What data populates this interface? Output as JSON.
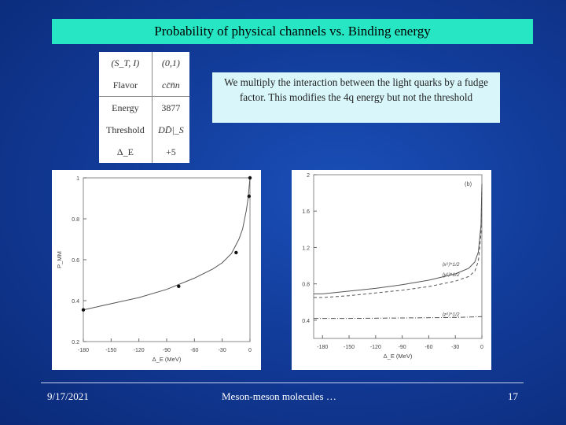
{
  "slide": {
    "title": "Probability of physical channels vs. Binding energy",
    "note": "We multiply the interaction between the light quarks by a fudge factor. This modifies the 4q energy but not the threshold",
    "table": {
      "rows": [
        {
          "label": "(S_T, I)",
          "value": "(0,1)"
        },
        {
          "label": "Flavor",
          "value": "cc̄n̄n"
        },
        {
          "label": "Energy",
          "value": "3877"
        },
        {
          "label": "Threshold",
          "value": "DD̄|_S"
        },
        {
          "label": "Δ_E",
          "value": "+5"
        }
      ]
    },
    "footer": {
      "date": "9/17/2021",
      "center": "Meson-meson molecules …",
      "page": "17"
    }
  },
  "chart_data": [
    {
      "type": "line",
      "ylabel": "P_MM",
      "xlabel": "Δ_E (MeV)",
      "xlim": [
        -180,
        0
      ],
      "ylim": [
        0.2,
        1.0
      ],
      "x_ticks": [
        "-180",
        "-150",
        "-120",
        "-90",
        "-60",
        "-30",
        "0"
      ],
      "y_ticks": [
        "0.2",
        "0.4",
        "0.6",
        "0.8",
        "1"
      ],
      "series": [
        {
          "x": [
            -180,
            -150,
            -120,
            -90,
            -60,
            -40,
            -30,
            -20,
            -12,
            -8,
            -4,
            -2,
            0
          ],
          "y": [
            0.355,
            0.385,
            0.415,
            0.455,
            0.51,
            0.555,
            0.585,
            0.63,
            0.7,
            0.75,
            0.84,
            0.9,
            1.0
          ]
        }
      ],
      "points": {
        "x": [
          -180,
          -77,
          -15,
          -1,
          0
        ],
        "y": [
          0.355,
          0.47,
          0.635,
          0.91,
          1.0
        ]
      }
    },
    {
      "type": "line",
      "panel_label": "(b)",
      "xlabel": "Δ_E (MeV)",
      "xlim": [
        -190,
        0
      ],
      "ylim": [
        0.2,
        2.0
      ],
      "x_ticks": [
        "-180",
        "-150",
        "-120",
        "-90",
        "-60",
        "-30",
        "0"
      ],
      "y_ticks": [
        "0.4",
        "0.8",
        "1.2",
        "1.6",
        "2"
      ],
      "series": [
        {
          "name": "⟨x²⟩^1/2",
          "style": "solid",
          "x": [
            -190,
            -180,
            -150,
            -120,
            -90,
            -60,
            -30,
            -15,
            -8,
            -4,
            -1,
            0
          ],
          "y": [
            0.69,
            0.69,
            0.72,
            0.75,
            0.79,
            0.84,
            0.91,
            0.97,
            1.04,
            1.15,
            1.45,
            1.9
          ]
        },
        {
          "name": "⟨y²⟩^1/2",
          "style": "dashed",
          "x": [
            -190,
            -180,
            -150,
            -120,
            -90,
            -60,
            -30,
            -15,
            -8,
            -4,
            -1,
            0
          ],
          "y": [
            0.65,
            0.65,
            0.67,
            0.7,
            0.73,
            0.77,
            0.83,
            0.88,
            0.94,
            1.05,
            1.35,
            1.85
          ]
        },
        {
          "name": "⟨z²⟩^1/2",
          "style": "dashdot",
          "x": [
            -190,
            -150,
            -90,
            -30,
            0
          ],
          "y": [
            0.42,
            0.42,
            0.425,
            0.43,
            0.44
          ]
        }
      ]
    }
  ]
}
